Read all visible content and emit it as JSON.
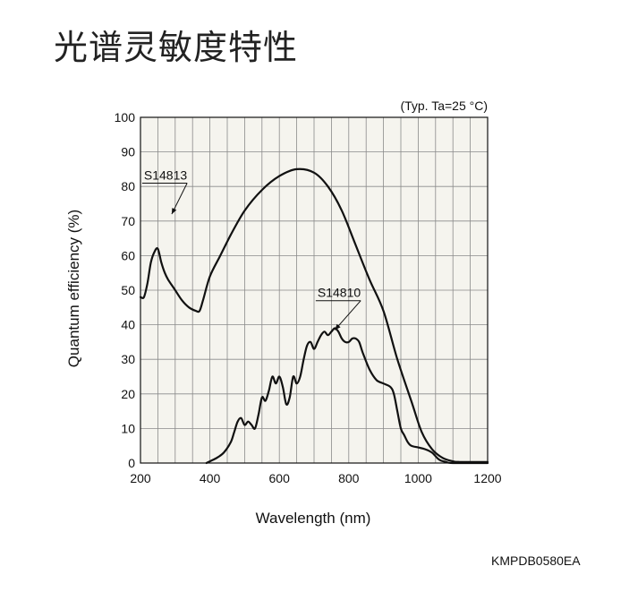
{
  "page": {
    "title": "光谱灵敏度特性",
    "doc_code": "KMPDB0580EA"
  },
  "chart_data": {
    "type": "line",
    "condition": "(Typ. Ta=25 °C)",
    "xlabel": "Wavelength (nm)",
    "ylabel": "Quantum efficiency (%)",
    "xlim": [
      200,
      1200
    ],
    "ylim": [
      0,
      100
    ],
    "x_ticks": [
      200,
      400,
      600,
      800,
      1000,
      1200
    ],
    "y_ticks": [
      0,
      10,
      20,
      30,
      40,
      50,
      60,
      70,
      80,
      90,
      100
    ],
    "grid": true,
    "background": "#f5f4ee",
    "line_color": "#111111",
    "series": [
      {
        "name": "S14813",
        "label_at": [
          210,
          82
        ],
        "pointer_to": [
          290,
          72
        ],
        "points": [
          [
            200,
            48
          ],
          [
            210,
            48
          ],
          [
            220,
            52
          ],
          [
            230,
            58
          ],
          [
            240,
            61
          ],
          [
            250,
            62
          ],
          [
            260,
            58
          ],
          [
            270,
            55
          ],
          [
            280,
            53
          ],
          [
            300,
            50
          ],
          [
            320,
            47
          ],
          [
            340,
            45
          ],
          [
            360,
            44
          ],
          [
            370,
            44
          ],
          [
            380,
            47
          ],
          [
            400,
            54
          ],
          [
            430,
            60
          ],
          [
            460,
            66
          ],
          [
            500,
            73
          ],
          [
            550,
            79
          ],
          [
            600,
            83
          ],
          [
            650,
            85
          ],
          [
            700,
            84
          ],
          [
            740,
            80
          ],
          [
            780,
            73
          ],
          [
            820,
            63
          ],
          [
            860,
            53
          ],
          [
            900,
            44
          ],
          [
            940,
            30
          ],
          [
            980,
            18
          ],
          [
            1010,
            9
          ],
          [
            1040,
            4
          ],
          [
            1070,
            1.5
          ],
          [
            1100,
            0.5
          ],
          [
            1120,
            0.3
          ],
          [
            1200,
            0.3
          ]
        ]
      },
      {
        "name": "S14810",
        "label_at": [
          710,
          48
        ],
        "pointer_to": [
          760,
          38.5
        ],
        "points": [
          [
            390,
            0
          ],
          [
            400,
            0.5
          ],
          [
            420,
            1.5
          ],
          [
            440,
            3
          ],
          [
            460,
            6
          ],
          [
            470,
            9
          ],
          [
            480,
            12
          ],
          [
            490,
            13
          ],
          [
            500,
            11
          ],
          [
            510,
            12
          ],
          [
            520,
            11
          ],
          [
            530,
            10
          ],
          [
            540,
            14
          ],
          [
            550,
            19
          ],
          [
            560,
            18
          ],
          [
            570,
            21
          ],
          [
            580,
            25
          ],
          [
            590,
            23
          ],
          [
            600,
            25
          ],
          [
            610,
            22
          ],
          [
            620,
            17
          ],
          [
            630,
            19
          ],
          [
            640,
            25
          ],
          [
            650,
            23
          ],
          [
            660,
            25
          ],
          [
            670,
            30
          ],
          [
            680,
            34
          ],
          [
            690,
            35
          ],
          [
            700,
            33
          ],
          [
            710,
            35
          ],
          [
            720,
            37
          ],
          [
            730,
            38
          ],
          [
            740,
            37
          ],
          [
            750,
            38
          ],
          [
            760,
            39
          ],
          [
            770,
            38
          ],
          [
            780,
            36
          ],
          [
            790,
            35
          ],
          [
            800,
            35
          ],
          [
            810,
            36
          ],
          [
            820,
            36
          ],
          [
            830,
            35
          ],
          [
            840,
            32
          ],
          [
            860,
            27
          ],
          [
            880,
            24
          ],
          [
            900,
            23
          ],
          [
            920,
            22
          ],
          [
            930,
            20
          ],
          [
            940,
            15
          ],
          [
            950,
            10
          ],
          [
            960,
            8
          ],
          [
            970,
            6
          ],
          [
            980,
            5
          ],
          [
            1000,
            4.5
          ],
          [
            1020,
            4
          ],
          [
            1040,
            3
          ],
          [
            1060,
            1
          ],
          [
            1080,
            0.3
          ],
          [
            1100,
            0
          ],
          [
            1200,
            0
          ]
        ]
      }
    ]
  }
}
